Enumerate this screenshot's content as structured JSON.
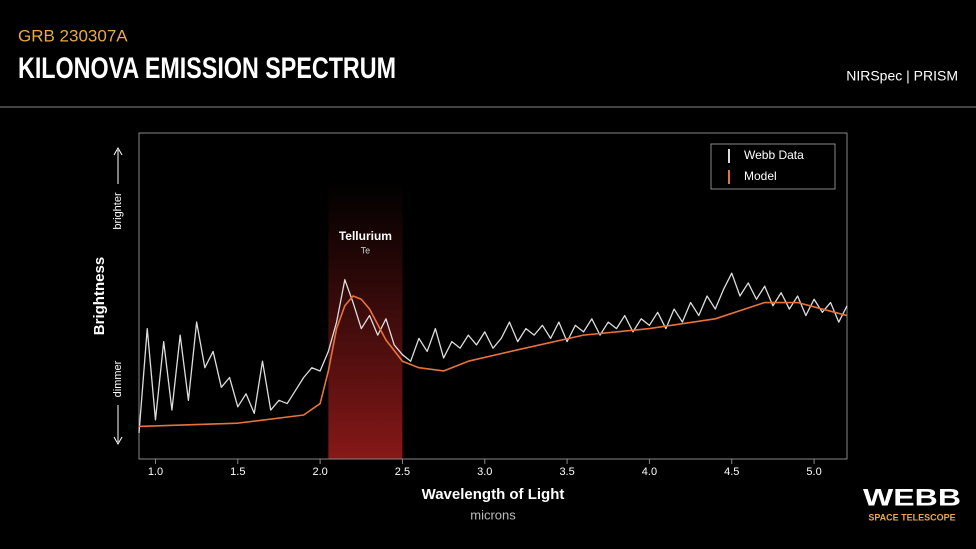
{
  "chart_data": {
    "type": "line",
    "kicker": "GRB 230307A",
    "title": "KILONOVA EMISSION SPECTRUM",
    "instrument": "NIRSpec | PRISM",
    "ylabel": "Brightness",
    "y_high_label": "brighter",
    "y_low_label": "dimmer",
    "xlabel": "Wavelength of Light",
    "xunit": "microns",
    "logo": {
      "name": "WEBB",
      "subtitle": "SPACE TELESCOPE"
    },
    "highlight": {
      "label": "Tellurium",
      "sublabel": "Te",
      "range": [
        2.05,
        2.5
      ]
    },
    "xlim": [
      0.9,
      5.2
    ],
    "ylim": [
      0,
      100
    ],
    "xticks": [
      {
        "value": 1.0,
        "label": "1.0"
      },
      1.5,
      {
        "value": 2.0,
        "label": "2.0"
      },
      2.5,
      {
        "value": 3.0,
        "label": "3.0"
      },
      3.5,
      {
        "value": 4.0,
        "label": "4.0"
      },
      4.5,
      {
        "value": 5.0,
        "label": "5.0"
      }
    ],
    "legend": "upper right",
    "series": [
      {
        "name": "Webb Data",
        "color": "#dddddd",
        "x": [
          0.9,
          0.95,
          1.0,
          1.05,
          1.1,
          1.15,
          1.2,
          1.25,
          1.3,
          1.35,
          1.4,
          1.45,
          1.5,
          1.55,
          1.6,
          1.65,
          1.7,
          1.75,
          1.8,
          1.85,
          1.9,
          1.95,
          2.0,
          2.05,
          2.1,
          2.15,
          2.2,
          2.25,
          2.3,
          2.35,
          2.4,
          2.45,
          2.5,
          2.55,
          2.6,
          2.65,
          2.7,
          2.75,
          2.8,
          2.85,
          2.9,
          2.95,
          3.0,
          3.05,
          3.1,
          3.15,
          3.2,
          3.25,
          3.3,
          3.35,
          3.4,
          3.45,
          3.5,
          3.55,
          3.6,
          3.65,
          3.7,
          3.75,
          3.8,
          3.85,
          3.9,
          3.95,
          4.0,
          4.05,
          4.1,
          4.15,
          4.2,
          4.25,
          4.3,
          4.35,
          4.4,
          4.45,
          4.5,
          4.55,
          4.6,
          4.65,
          4.7,
          4.75,
          4.8,
          4.85,
          4.9,
          4.95,
          5.0,
          5.05,
          5.1,
          5.15,
          5.2
        ],
        "values": [
          8,
          40,
          12,
          36,
          15,
          38,
          18,
          42,
          28,
          33,
          22,
          25,
          16,
          20,
          14,
          30,
          15,
          18,
          17,
          21,
          25,
          28,
          27,
          33,
          42,
          55,
          48,
          40,
          44,
          38,
          43,
          35,
          32,
          30,
          37,
          33,
          40,
          31,
          36,
          34,
          38,
          35,
          39,
          34,
          37,
          42,
          36,
          40,
          38,
          41,
          37,
          42,
          36,
          41,
          39,
          43,
          38,
          42,
          40,
          44,
          39,
          43,
          41,
          45,
          40,
          46,
          42,
          48,
          44,
          50,
          46,
          52,
          57,
          50,
          54,
          49,
          53,
          47,
          51,
          46,
          50,
          44,
          49,
          45,
          48,
          42,
          47
        ]
      },
      {
        "name": "Model",
        "color": "#e8733a",
        "x": [
          0.9,
          1.5,
          1.9,
          2.0,
          2.05,
          2.1,
          2.15,
          2.2,
          2.25,
          2.3,
          2.4,
          2.5,
          2.6,
          2.75,
          2.9,
          3.2,
          3.6,
          4.0,
          4.4,
          4.7,
          4.9,
          5.2
        ],
        "values": [
          10,
          11,
          13.5,
          17,
          27,
          40,
          47,
          50,
          49,
          46,
          36.5,
          30,
          28,
          27,
          30,
          33.5,
          38,
          40,
          43,
          48,
          48,
          44
        ]
      }
    ]
  }
}
